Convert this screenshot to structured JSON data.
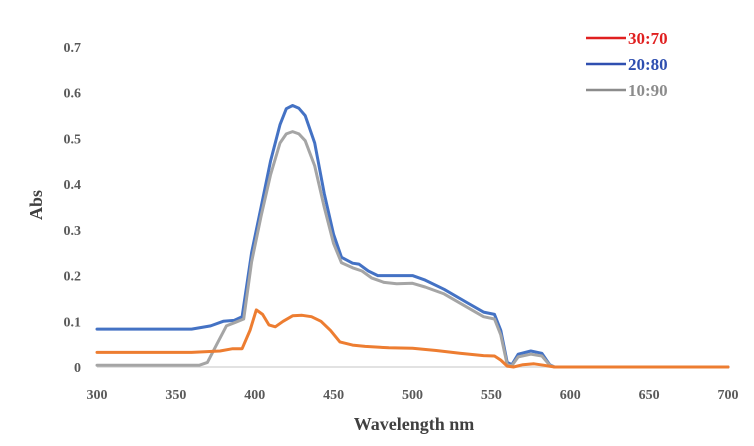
{
  "chart_data": {
    "type": "line",
    "xlabel": "Wavelength nm",
    "ylabel": "Abs",
    "xlim": [
      300,
      700
    ],
    "ylim": [
      0,
      0.7
    ],
    "x_ticks": [
      "300",
      "350",
      "400",
      "450",
      "500",
      "550",
      "600",
      "650",
      "700"
    ],
    "y_ticks": [
      "0",
      "0.1",
      "0.2",
      "0.3",
      "0.4",
      "0.5",
      "0.6",
      "0.7"
    ],
    "grid": false,
    "legend_position": "top-right",
    "series": [
      {
        "name": "20:80",
        "color": "#4472c4",
        "legend_color": "#2f4fb0",
        "points": [
          [
            300,
            0.083
          ],
          [
            360,
            0.083
          ],
          [
            372,
            0.09
          ],
          [
            380,
            0.1
          ],
          [
            387,
            0.102
          ],
          [
            392,
            0.11
          ],
          [
            398,
            0.25
          ],
          [
            404,
            0.35
          ],
          [
            410,
            0.45
          ],
          [
            416,
            0.53
          ],
          [
            420,
            0.565
          ],
          [
            424,
            0.572
          ],
          [
            428,
            0.566
          ],
          [
            432,
            0.55
          ],
          [
            438,
            0.49
          ],
          [
            444,
            0.38
          ],
          [
            450,
            0.29
          ],
          [
            455,
            0.24
          ],
          [
            462,
            0.227
          ],
          [
            466,
            0.225
          ],
          [
            472,
            0.21
          ],
          [
            478,
            0.2
          ],
          [
            485,
            0.2
          ],
          [
            492,
            0.2
          ],
          [
            500,
            0.2
          ],
          [
            508,
            0.19
          ],
          [
            520,
            0.17
          ],
          [
            535,
            0.14
          ],
          [
            545,
            0.12
          ],
          [
            552,
            0.115
          ],
          [
            556,
            0.08
          ],
          [
            560,
            0.01
          ],
          [
            563,
            0.005
          ],
          [
            567,
            0.028
          ],
          [
            575,
            0.035
          ],
          [
            582,
            0.03
          ],
          [
            587,
            0.005
          ],
          [
            590,
            0.0
          ],
          [
            700,
            0.0
          ]
        ]
      },
      {
        "name": "10:90",
        "color": "#a5a5a5",
        "legend_color": "#8c8c8c",
        "points": [
          [
            300,
            0.004
          ],
          [
            365,
            0.004
          ],
          [
            370,
            0.01
          ],
          [
            376,
            0.05
          ],
          [
            382,
            0.09
          ],
          [
            388,
            0.098
          ],
          [
            393,
            0.105
          ],
          [
            398,
            0.23
          ],
          [
            404,
            0.33
          ],
          [
            410,
            0.42
          ],
          [
            416,
            0.49
          ],
          [
            420,
            0.51
          ],
          [
            424,
            0.515
          ],
          [
            428,
            0.51
          ],
          [
            432,
            0.495
          ],
          [
            438,
            0.44
          ],
          [
            444,
            0.35
          ],
          [
            450,
            0.27
          ],
          [
            455,
            0.228
          ],
          [
            462,
            0.217
          ],
          [
            468,
            0.21
          ],
          [
            474,
            0.195
          ],
          [
            482,
            0.185
          ],
          [
            490,
            0.182
          ],
          [
            500,
            0.183
          ],
          [
            508,
            0.175
          ],
          [
            520,
            0.16
          ],
          [
            535,
            0.13
          ],
          [
            545,
            0.11
          ],
          [
            552,
            0.105
          ],
          [
            556,
            0.07
          ],
          [
            560,
            0.005
          ],
          [
            563,
            0.003
          ],
          [
            567,
            0.022
          ],
          [
            575,
            0.028
          ],
          [
            582,
            0.024
          ],
          [
            587,
            0.004
          ],
          [
            590,
            0.0
          ],
          [
            700,
            0.0
          ]
        ]
      },
      {
        "name": "30:70",
        "color": "#ed7d31",
        "legend_color": "#e02020",
        "points": [
          [
            300,
            0.032
          ],
          [
            360,
            0.032
          ],
          [
            378,
            0.035
          ],
          [
            386,
            0.04
          ],
          [
            392,
            0.04
          ],
          [
            397,
            0.08
          ],
          [
            401,
            0.125
          ],
          [
            405,
            0.115
          ],
          [
            409,
            0.092
          ],
          [
            413,
            0.088
          ],
          [
            418,
            0.1
          ],
          [
            424,
            0.112
          ],
          [
            430,
            0.113
          ],
          [
            436,
            0.11
          ],
          [
            442,
            0.1
          ],
          [
            448,
            0.08
          ],
          [
            454,
            0.055
          ],
          [
            462,
            0.048
          ],
          [
            470,
            0.045
          ],
          [
            485,
            0.042
          ],
          [
            500,
            0.041
          ],
          [
            515,
            0.036
          ],
          [
            530,
            0.03
          ],
          [
            545,
            0.025
          ],
          [
            552,
            0.024
          ],
          [
            556,
            0.015
          ],
          [
            560,
            0.002
          ],
          [
            564,
            0.0
          ],
          [
            570,
            0.005
          ],
          [
            577,
            0.007
          ],
          [
            583,
            0.004
          ],
          [
            590,
            0.0
          ],
          [
            700,
            0.0
          ]
        ]
      }
    ],
    "legend_order": [
      2,
      0,
      1
    ]
  }
}
